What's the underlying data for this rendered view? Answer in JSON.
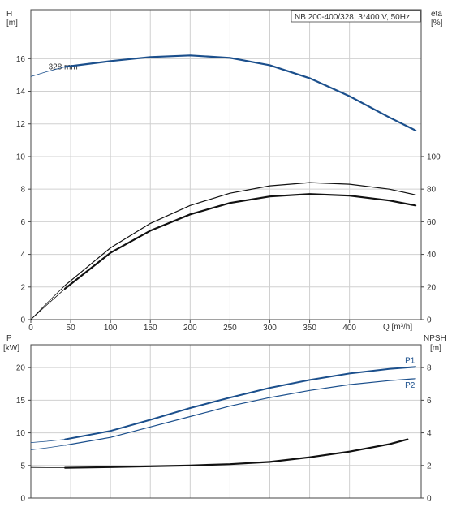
{
  "colors": {
    "blue": "#1b4f8c",
    "black": "#111111",
    "grid": "#d0d0d0",
    "axis": "#444444"
  },
  "chart_data": [
    {
      "type": "line",
      "name": "top",
      "title": "NB 200-400/328, 3*400 V, 50Hz",
      "xlabel": "Q [m³/h]",
      "ylabel_left": "H",
      "ylabel_left_unit": "[m]",
      "ylabel_right": "eta",
      "ylabel_right_unit": "[%]",
      "xlim": [
        0,
        490
      ],
      "xticks": [
        0,
        50,
        100,
        150,
        200,
        250,
        300,
        350,
        400
      ],
      "ylim_left": [
        0,
        19
      ],
      "yticks_left": [
        0,
        2,
        4,
        6,
        8,
        10,
        12,
        14,
        16
      ],
      "ylim_right": [
        0,
        190
      ],
      "yticks_right": [
        0,
        20,
        40,
        60,
        80,
        100
      ],
      "annotations": [
        {
          "text": "328 mm",
          "x": 22,
          "y": 15.5
        }
      ],
      "series": [
        {
          "id": "h_thin",
          "axis": "left",
          "color": "blue",
          "width": 0.8,
          "x": [
            0,
            20,
            43
          ],
          "y": [
            14.9,
            15.2,
            15.5
          ]
        },
        {
          "id": "h_main",
          "axis": "left",
          "color": "blue",
          "width": 2.2,
          "x": [
            43,
            100,
            150,
            200,
            250,
            300,
            350,
            400,
            450,
            483
          ],
          "y": [
            15.5,
            15.85,
            16.1,
            16.2,
            16.05,
            15.6,
            14.8,
            13.7,
            12.4,
            11.6
          ]
        },
        {
          "id": "eta_outer_thin",
          "axis": "right",
          "color": "black",
          "width": 0.8,
          "x": [
            0,
            20,
            43
          ],
          "y": [
            0,
            10,
            21
          ]
        },
        {
          "id": "eta_outer",
          "axis": "right",
          "color": "black",
          "width": 1.2,
          "x": [
            43,
            100,
            150,
            200,
            250,
            300,
            350,
            400,
            450,
            483
          ],
          "y": [
            21,
            44,
            59,
            70,
            77.5,
            82,
            84,
            83,
            80,
            76.5
          ]
        },
        {
          "id": "eta_inner_thin",
          "axis": "right",
          "color": "black",
          "width": 0.8,
          "x": [
            0,
            20,
            43
          ],
          "y": [
            0,
            9,
            19
          ]
        },
        {
          "id": "eta_inner",
          "axis": "right",
          "color": "black",
          "width": 2.2,
          "x": [
            43,
            100,
            150,
            200,
            250,
            300,
            350,
            400,
            450,
            483
          ],
          "y": [
            19,
            41,
            54.5,
            64.5,
            71.5,
            75.5,
            77,
            76,
            73,
            70
          ]
        }
      ]
    },
    {
      "type": "line",
      "name": "bottom",
      "ylabel_left": "P",
      "ylabel_left_unit": "[kW]",
      "ylabel_right": "NPSH",
      "ylabel_right_unit": "[m]",
      "xlim": [
        0,
        490
      ],
      "ylim_left": [
        0,
        23.5
      ],
      "yticks_left": [
        0,
        5,
        10,
        15,
        20
      ],
      "ylim_right": [
        0,
        9.4
      ],
      "yticks_right": [
        0,
        2,
        4,
        6,
        8
      ],
      "series": [
        {
          "id": "p1_thin",
          "axis": "left",
          "color": "blue",
          "width": 0.8,
          "x": [
            0,
            20,
            43
          ],
          "y": [
            8.5,
            8.7,
            9.0
          ]
        },
        {
          "id": "p1",
          "axis": "left",
          "color": "blue",
          "width": 2.0,
          "label": "P1",
          "x": [
            43,
            100,
            150,
            200,
            250,
            300,
            350,
            400,
            450,
            483
          ],
          "y": [
            9.0,
            10.3,
            12.0,
            13.8,
            15.4,
            16.9,
            18.1,
            19.1,
            19.8,
            20.1
          ]
        },
        {
          "id": "p2_thin",
          "axis": "left",
          "color": "blue",
          "width": 0.8,
          "x": [
            0,
            20,
            43
          ],
          "y": [
            7.4,
            7.7,
            8.1
          ]
        },
        {
          "id": "p2",
          "axis": "left",
          "color": "blue",
          "width": 1.2,
          "label": "P2",
          "x": [
            43,
            100,
            150,
            200,
            250,
            300,
            350,
            400,
            450,
            483
          ],
          "y": [
            8.1,
            9.3,
            10.9,
            12.5,
            14.1,
            15.4,
            16.5,
            17.4,
            18.0,
            18.3
          ]
        },
        {
          "id": "npsh_thin",
          "axis": "right",
          "color": "black",
          "width": 0.8,
          "x": [
            0,
            20,
            43
          ],
          "y": [
            1.88,
            1.87,
            1.86
          ]
        },
        {
          "id": "npsh",
          "axis": "right",
          "color": "black",
          "width": 2.2,
          "x": [
            43,
            100,
            150,
            200,
            250,
            300,
            350,
            400,
            450,
            473
          ],
          "y": [
            1.86,
            1.9,
            1.95,
            2.0,
            2.08,
            2.22,
            2.5,
            2.85,
            3.3,
            3.6
          ]
        }
      ]
    }
  ]
}
